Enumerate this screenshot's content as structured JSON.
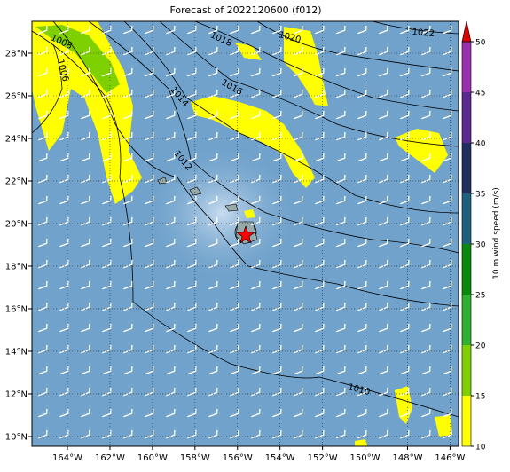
{
  "title": "Forecast of 2022120600 (f012)",
  "map": {
    "xlim": [
      -165.67,
      -145.6
    ],
    "ylim": [
      9.54,
      29.5
    ],
    "xticks": [
      {
        "value": -164,
        "label": "164°W"
      },
      {
        "value": -162,
        "label": "162°W"
      },
      {
        "value": -160,
        "label": "160°W"
      },
      {
        "value": -158,
        "label": "158°W"
      },
      {
        "value": -156,
        "label": "156°W"
      },
      {
        "value": -154,
        "label": "154°W"
      },
      {
        "value": -152,
        "label": "152°W"
      },
      {
        "value": -150,
        "label": "150°W"
      },
      {
        "value": -148,
        "label": "148°W"
      },
      {
        "value": -146,
        "label": "146°W"
      }
    ],
    "yticks": [
      {
        "value": 10,
        "label": "10°N"
      },
      {
        "value": 12,
        "label": "12°N"
      },
      {
        "value": 14,
        "label": "14°N"
      },
      {
        "value": 16,
        "label": "16°N"
      },
      {
        "value": 18,
        "label": "18°N"
      },
      {
        "value": 20,
        "label": "20°N"
      },
      {
        "value": 22,
        "label": "22°N"
      },
      {
        "value": 24,
        "label": "24°N"
      },
      {
        "value": 26,
        "label": "26°N"
      },
      {
        "value": 28,
        "label": "28°N"
      }
    ],
    "grid": true,
    "contour_labels": [
      "1006",
      "1008",
      "1010",
      "1012",
      "1014",
      "1016",
      "1018",
      "1020",
      "1022"
    ]
  },
  "colorbar": {
    "label": "10 m wind speed (m/s)",
    "lim": [
      10,
      50
    ],
    "ticks": [
      10,
      15,
      20,
      25,
      30,
      35,
      40,
      45,
      50
    ],
    "colors": [
      "#ffff00",
      "#80d000",
      "#30b030",
      "#0a8a0a",
      "#1f6080",
      "#1e2f60",
      "#5a2a90",
      "#9a30b0"
    ],
    "extend_color": "#e00000"
  }
}
